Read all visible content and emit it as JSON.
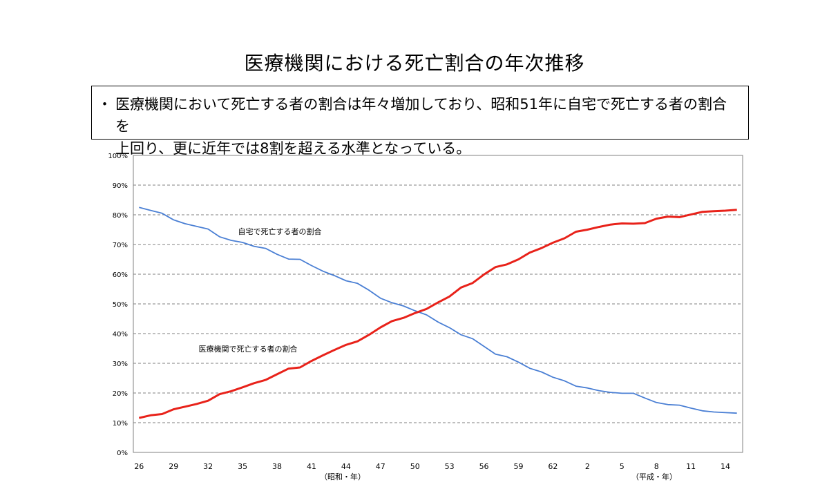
{
  "title": "医療機関における死亡割合の年次推移",
  "summary": {
    "bullet": "・",
    "line1": "医療機関において死亡する者の割合は年々増加しており、昭和51年に自宅で死亡する者の割合を",
    "line2": "上回り、更に近年では8割を超える水準となっている。"
  },
  "chart_data": {
    "type": "line",
    "title": "医療機関における死亡割合の年次推移",
    "xlabel": "",
    "ylabel": "",
    "ylim": [
      0,
      100
    ],
    "grid": true,
    "x": [
      "26",
      "27",
      "28",
      "29",
      "30",
      "31",
      "32",
      "33",
      "34",
      "35",
      "36",
      "37",
      "38",
      "39",
      "40",
      "41",
      "42",
      "43",
      "44",
      "45",
      "46",
      "47",
      "48",
      "49",
      "50",
      "51",
      "52",
      "53",
      "54",
      "55",
      "56",
      "57",
      "58",
      "59",
      "60",
      "61",
      "62",
      "63",
      "元",
      "2",
      "3",
      "4",
      "5",
      "6",
      "7",
      "8",
      "9",
      "10",
      "11",
      "12",
      "13",
      "14",
      "15"
    ],
    "x_tick_labels": [
      "26",
      "29",
      "32",
      "35",
      "38",
      "41",
      "44",
      "47",
      "50",
      "53",
      "56",
      "59",
      "62",
      "2",
      "5",
      "8",
      "11",
      "14"
    ],
    "y_tick_labels": [
      "0%",
      "10%",
      "20%",
      "30%",
      "40%",
      "50%",
      "60%",
      "70%",
      "80%",
      "90%",
      "100%"
    ],
    "era_labels": {
      "showa": "（昭和・年）",
      "heisei": "（平成・年）"
    },
    "series": [
      {
        "name": "自宅で死亡する者の割合",
        "color": "#4a7fd4",
        "values": [
          82.5,
          81.5,
          80.5,
          78.3,
          77.0,
          76.1,
          75.2,
          72.6,
          71.4,
          70.7,
          69.4,
          68.7,
          66.7,
          65.1,
          65.0,
          62.9,
          61.0,
          59.5,
          57.8,
          56.9,
          54.6,
          51.9,
          50.4,
          49.3,
          47.7,
          46.3,
          43.9,
          42.0,
          39.6,
          38.3,
          35.7,
          33.1,
          32.2,
          30.4,
          28.3,
          27.1,
          25.3,
          24.1,
          22.3,
          21.7,
          20.8,
          20.2,
          19.9,
          19.9,
          18.3,
          16.8,
          16.1,
          15.9,
          14.9,
          14.0,
          13.6,
          13.4,
          13.2
        ]
      },
      {
        "name": "医療機関で死亡する者の割合",
        "color": "#e8221a",
        "values": [
          11.6,
          12.5,
          12.9,
          14.5,
          15.4,
          16.3,
          17.4,
          19.6,
          20.6,
          21.9,
          23.3,
          24.4,
          26.3,
          28.2,
          28.6,
          30.8,
          32.7,
          34.5,
          36.2,
          37.4,
          39.6,
          42.1,
          44.2,
          45.3,
          46.9,
          48.3,
          50.5,
          52.5,
          55.5,
          57.0,
          59.9,
          62.4,
          63.3,
          65.0,
          67.3,
          68.8,
          70.6,
          72.1,
          74.3,
          75.0,
          75.9,
          76.7,
          77.1,
          77.0,
          77.2,
          78.7,
          79.4,
          79.2,
          80.1,
          81.0,
          81.2,
          81.4,
          81.7
        ]
      }
    ]
  }
}
